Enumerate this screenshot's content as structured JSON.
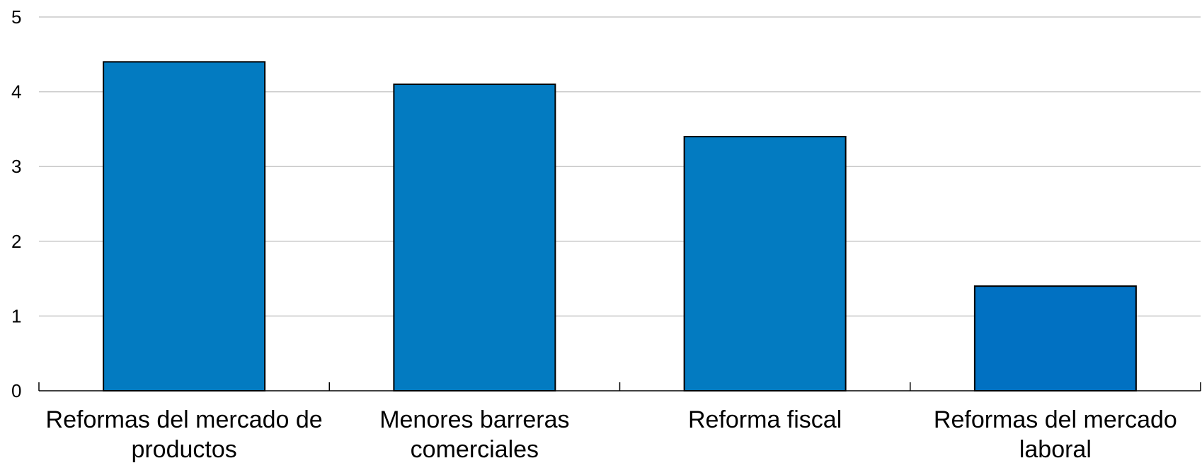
{
  "chart_data": {
    "type": "bar",
    "categories": [
      [
        "Reformas del mercado de",
        "productos"
      ],
      [
        "Menores barreras",
        "comerciales"
      ],
      [
        "Reforma fiscal"
      ],
      [
        "Reformas del mercado",
        "laboral"
      ]
    ],
    "values": [
      4.4,
      4.1,
      3.4,
      1.4
    ],
    "ylim": [
      0,
      5
    ],
    "yticks": [
      0,
      1,
      2,
      3,
      4,
      5
    ],
    "grid": true,
    "colors": {
      "bars": [
        "#037bc1",
        "#037bc1",
        "#037bc1",
        "#0171c2"
      ],
      "grid": "#c8c8c8",
      "axis": "#000000"
    },
    "title": "",
    "xlabel": "",
    "ylabel": ""
  }
}
